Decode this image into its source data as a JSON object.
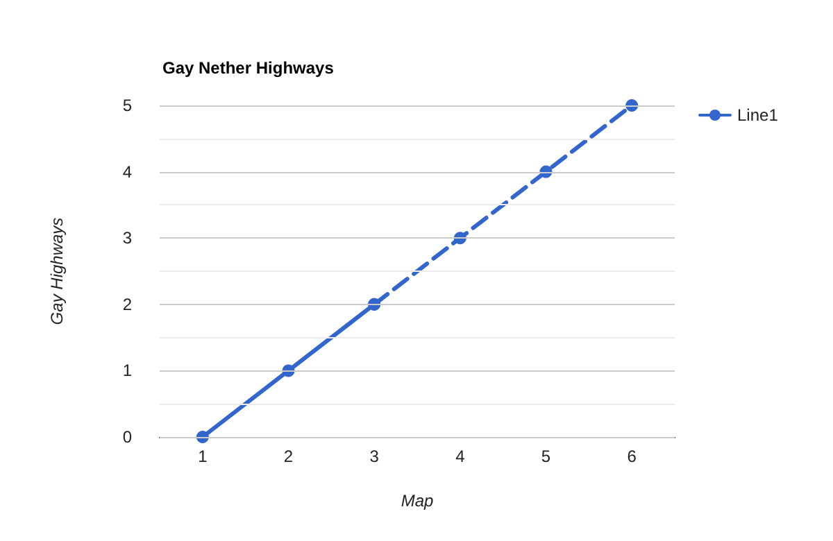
{
  "chart_data": {
    "type": "line",
    "title": "Gay Nether Highways",
    "xlabel": "Map",
    "ylabel": "Gay Highways",
    "x": [
      1,
      2,
      3,
      4,
      5,
      6
    ],
    "series": [
      {
        "name": "Line1",
        "color": "#3366cc",
        "values": [
          0,
          1,
          2,
          null,
          null,
          null
        ],
        "line_style": "solid"
      },
      {
        "color": "#3366cc",
        "values": [
          null,
          null,
          2,
          3,
          4,
          5
        ],
        "line_style": "dashed"
      }
    ],
    "xlim": [
      0.5,
      6.5
    ],
    "xticks": [
      1,
      2,
      3,
      4,
      5,
      6
    ],
    "ylim": [
      0,
      5
    ],
    "yticks": [
      0,
      {
        "value": 0.5,
        "label": null
      },
      1,
      {
        "value": 1.5,
        "label": null
      },
      2,
      {
        "value": 2.5,
        "label": null
      },
      3,
      {
        "value": 3.5,
        "label": null
      },
      4,
      {
        "value": 4.5,
        "label": null
      },
      5
    ],
    "grid": "y",
    "legend": "top right",
    "marker": "circle"
  }
}
